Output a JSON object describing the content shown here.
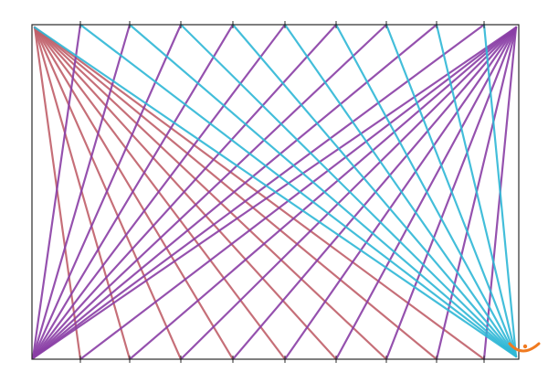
{
  "drawing": {
    "subject": "string-art",
    "colors": {
      "frame": "#2a2a2a",
      "red_fan": "#c0606a",
      "purple_fan": "#8a3fa6",
      "cyan_fan": "#2fb8d6",
      "smiley": "#f07a20",
      "paper": "#ffffff"
    },
    "fans": [
      {
        "from": "top-left-corner",
        "to": "bottom-ticks",
        "color_key": "red_fan"
      },
      {
        "from": "bottom-left-corner",
        "to": "top-ticks",
        "color_key": "purple_fan"
      },
      {
        "from": "top-right-corner",
        "to": "bottom-ticks",
        "color_key": "purple_fan"
      },
      {
        "from": "bottom-right-corner",
        "to": "top-ticks",
        "color_key": "cyan_fan"
      }
    ],
    "icons": [
      "smiley-icon"
    ]
  }
}
